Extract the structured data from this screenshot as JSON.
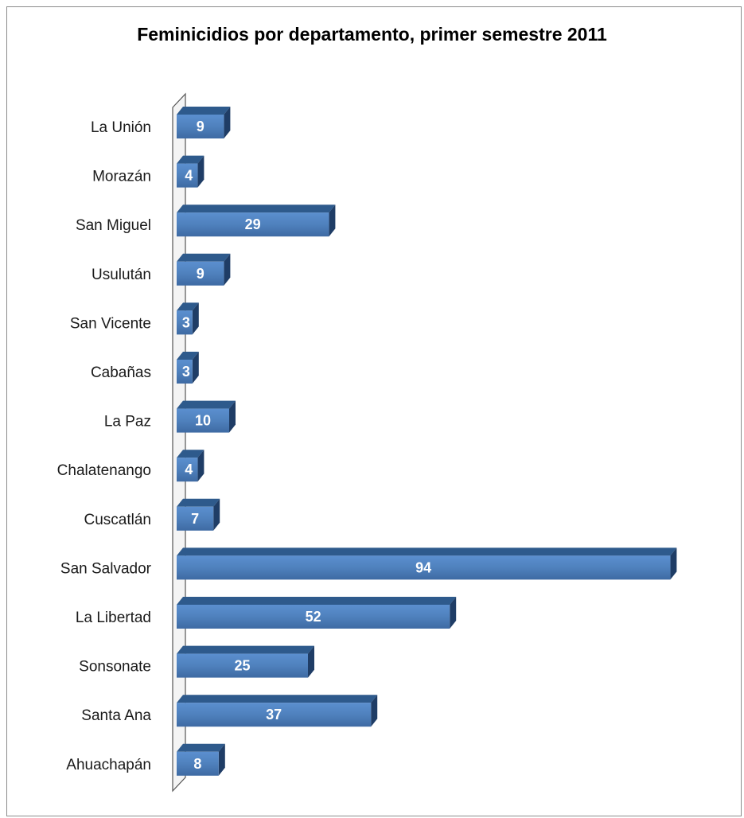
{
  "chart_data": {
    "type": "bar",
    "orientation": "horizontal",
    "title": "Feminicidios por departamento, primer semestre 2011",
    "categories": [
      "La Unión",
      "Morazán",
      "San Miguel",
      "Usulután",
      "San Vicente",
      "Cabañas",
      "La Paz",
      "Chalatenango",
      "Cuscatlán",
      "San Salvador",
      "La Libertad",
      "Sonsonate",
      "Santa Ana",
      "Ahuachapán"
    ],
    "values": [
      9,
      4,
      29,
      9,
      3,
      3,
      10,
      4,
      7,
      94,
      52,
      25,
      37,
      8
    ],
    "xlabel": "",
    "ylabel": "",
    "xlim": [
      0,
      94
    ],
    "grid": false,
    "legend": "none",
    "data_labels": true,
    "style": "3d",
    "colors": {
      "bar": "#4f81bd",
      "bar_dark": "#2e5a8c",
      "bar_side": "#1f3d66",
      "label": "#ffffff"
    }
  }
}
